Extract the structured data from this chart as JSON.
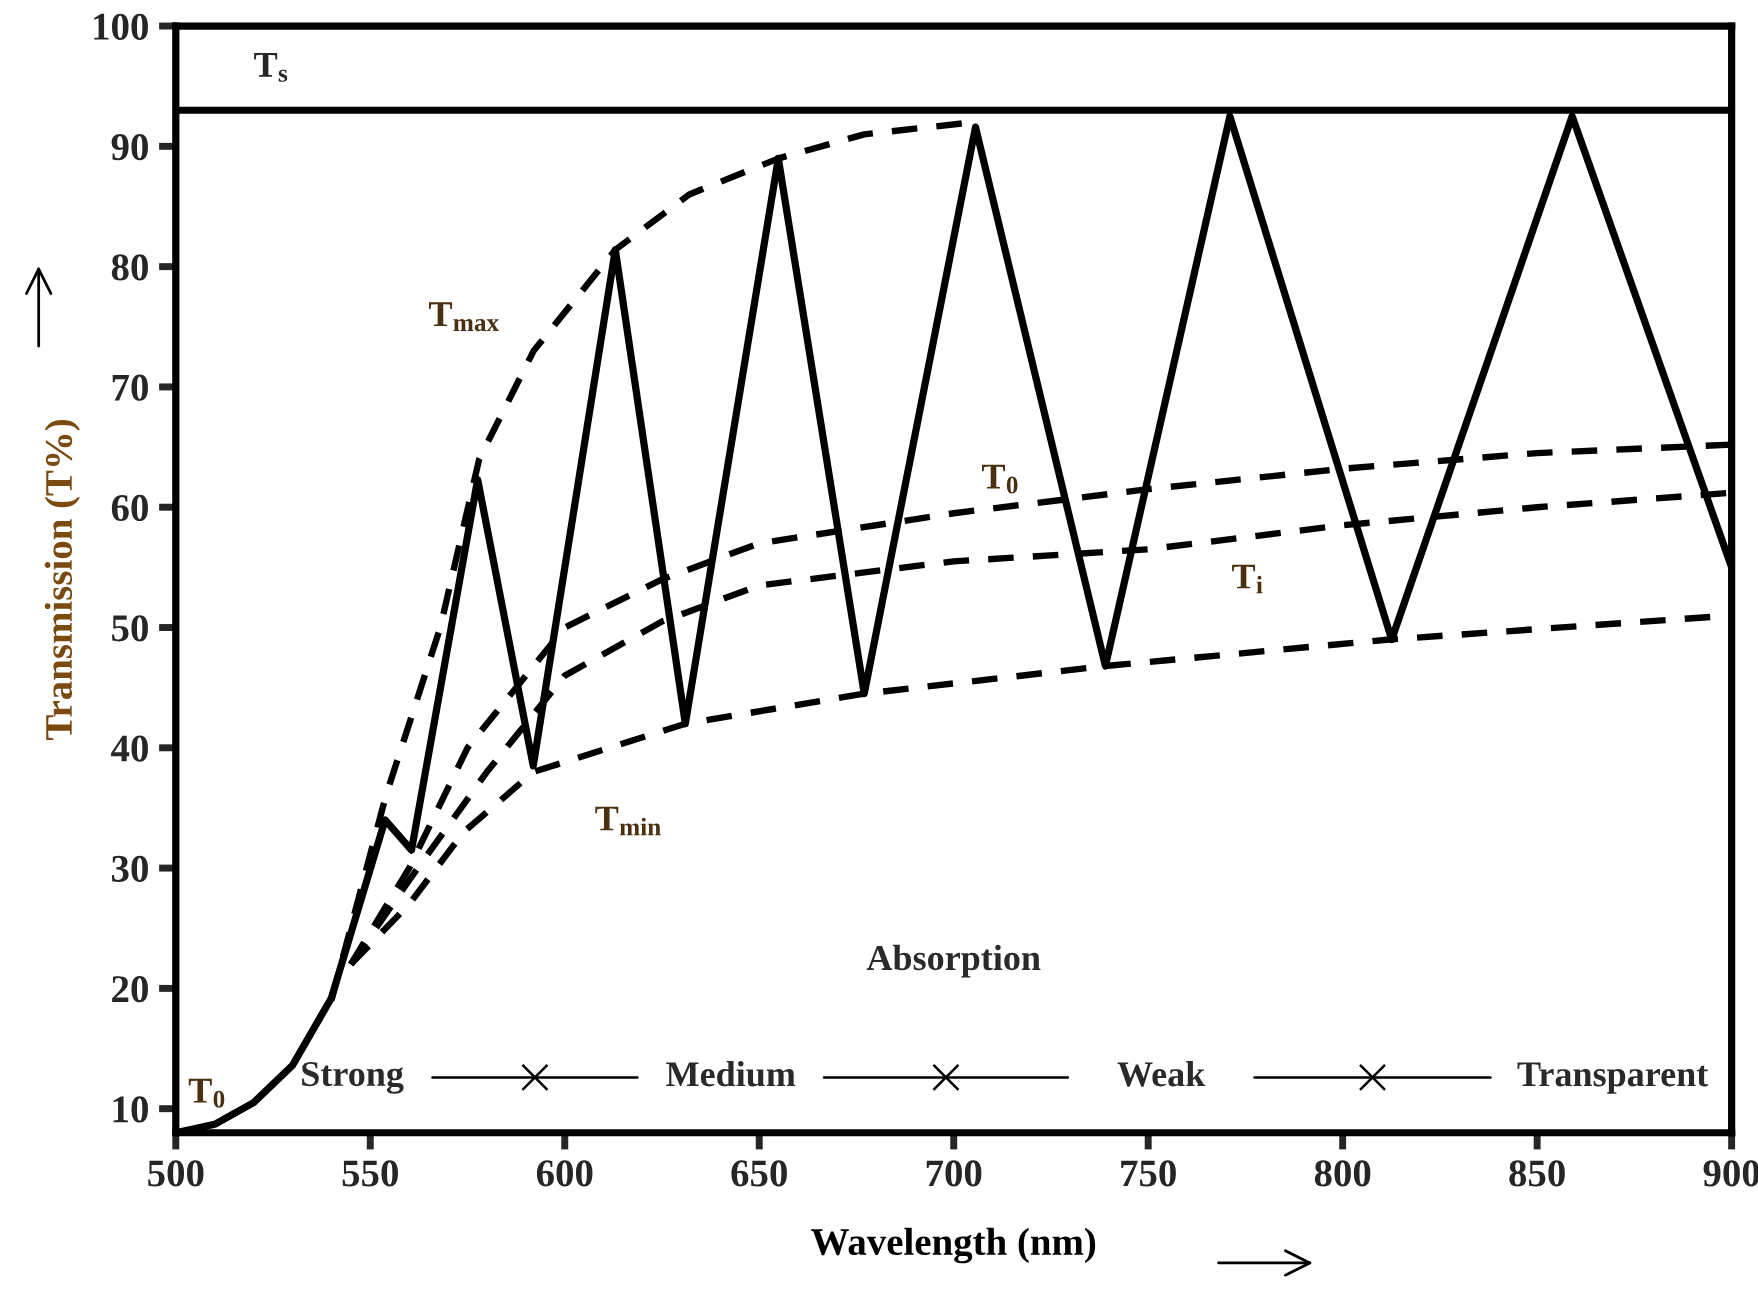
{
  "chart_data": {
    "type": "line",
    "xlabel": "Wavelength (nm)",
    "ylabel": "Transmission (T%)",
    "xlim": [
      500,
      900
    ],
    "ylim": [
      8,
      100
    ],
    "xticks": [
      500,
      550,
      600,
      650,
      700,
      750,
      800,
      850,
      900
    ],
    "yticks": [
      10,
      20,
      30,
      40,
      50,
      60,
      70,
      80,
      90,
      100
    ],
    "grid": false,
    "legend": false,
    "marker": "none",
    "series": [
      {
        "color": "#000000",
        "line_style": "solid",
        "x": [
          500,
          510,
          520,
          530,
          540,
          553.8,
          560.6,
          577.6,
          591.9,
          613,
          631,
          654.9,
          677,
          705.6,
          739,
          771,
          812.6,
          859,
          900
        ],
        "values": [
          8,
          8.7,
          10.5,
          13.6,
          19.2,
          34,
          31.5,
          62.3,
          38.5,
          81.4,
          42,
          89,
          44.5,
          91.6,
          46.8,
          92.5,
          49,
          92.5,
          55
        ]
      },
      {
        "name": "T$_{max}$",
        "color": "#000000",
        "line_style": "dashed",
        "x": [
          540,
          554,
          568,
          578,
          592,
          613,
          632,
          655,
          677,
          705
        ],
        "values": [
          19,
          36,
          50,
          64,
          73,
          81.4,
          86,
          89,
          91,
          92
        ]
      },
      {
        "name": "T$_{0}$",
        "color": "#000000",
        "line_style": "dashed",
        "x": [
          545,
          560,
          575,
          600,
          625,
          650,
          700,
          750,
          800,
          850,
          900
        ],
        "values": [
          22,
          30,
          40,
          50,
          54,
          57,
          59.5,
          61.5,
          63.2,
          64.5,
          65.2
        ]
      },
      {
        "name": "T$_{i}$",
        "color": "#000000",
        "line_style": "dashed",
        "x": [
          545,
          560,
          580,
          600,
          625,
          650,
          700,
          750,
          800,
          850,
          900
        ],
        "values": [
          22,
          29,
          38,
          46,
          50.5,
          53.5,
          55.5,
          56.5,
          58.5,
          60,
          61.2
        ]
      },
      {
        "name": "T$_{min}$",
        "color": "#000000",
        "line_style": "dashed",
        "x": [
          545,
          560,
          574,
          592,
          631,
          677,
          739,
          812,
          900
        ],
        "values": [
          22,
          27,
          33,
          38,
          42,
          44.5,
          46.8,
          49,
          51
        ]
      }
    ],
    "ref_lines": [
      {
        "axis": "y",
        "value": 93,
        "label": "T$_{s}$",
        "color": "#000000",
        "line_style": "solid"
      }
    ],
    "annotations": [
      "T$_{0}$",
      "Absorption",
      "Strong",
      "Medium",
      "Weak",
      "Transparent"
    ]
  }
}
